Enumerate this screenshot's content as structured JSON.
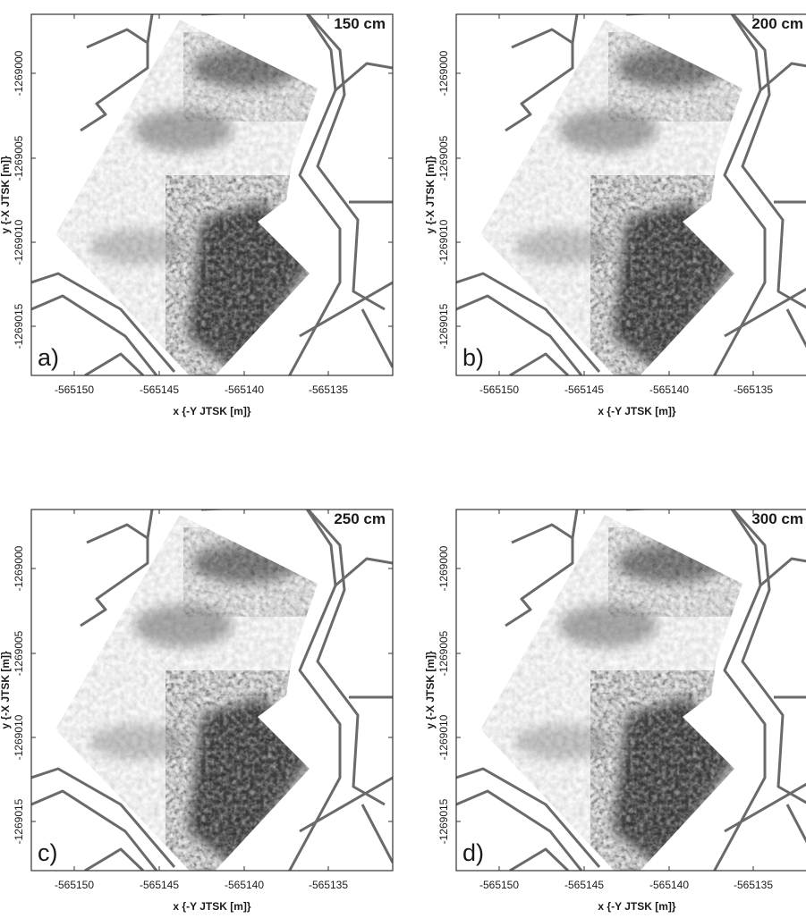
{
  "figure": {
    "x_axis_title": "x {-Y JTSK [m]}",
    "y_axis_title": "y {-X JTSK [m]}",
    "x_ticks": [
      "-565150",
      "-565145",
      "-565140",
      "-565135"
    ],
    "y_ticks": [
      "-1269000",
      "-1269005",
      "-1269010",
      "-1269015"
    ],
    "panels": [
      {
        "letter": "a)",
        "depth": "150 cm"
      },
      {
        "letter": "b)",
        "depth": "200 cm"
      },
      {
        "letter": "c)",
        "depth": "250 cm"
      },
      {
        "letter": "d)",
        "depth": "300 cm"
      }
    ]
  },
  "colors": {
    "background": "#ffffff",
    "map_lines": "#6a6a6a",
    "anomaly_high": "#111111",
    "anomaly_low": "#f4f4f4",
    "frame": "#333333"
  },
  "icons": [
    "grayscale-anomaly-map",
    "cadastral-boundary-lines"
  ]
}
